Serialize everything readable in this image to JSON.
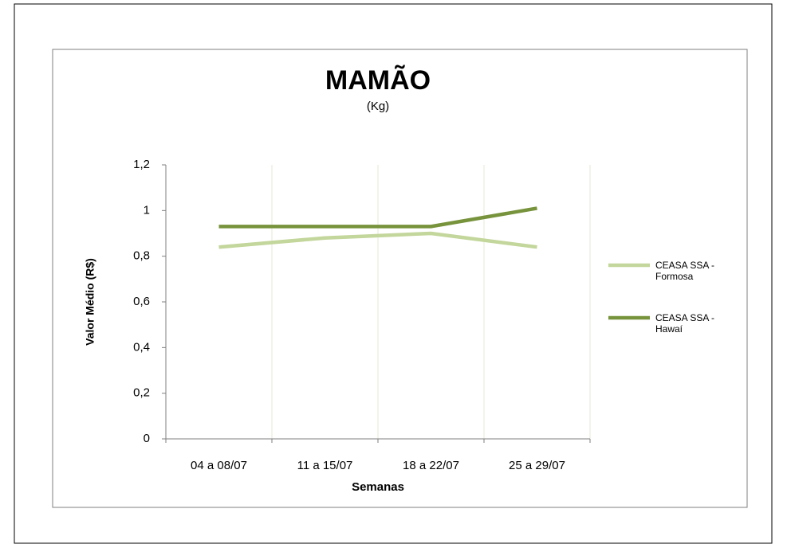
{
  "chart_data": {
    "type": "line",
    "title": "MAMÃO",
    "subtitle": "(Kg)",
    "x_label": "Semanas",
    "y_label": "Valor Médio (R$)",
    "categories": [
      "04 a 08/07",
      "11 a 15/07",
      "18 a 22/07",
      "25 a 29/07"
    ],
    "series": [
      {
        "name": "CEASA SSA - Formosa",
        "color": "#c3d69b",
        "values": [
          0.84,
          0.88,
          0.9,
          0.84
        ]
      },
      {
        "name": "CEASA SSA - Hawaí",
        "color": "#77933c",
        "values": [
          0.93,
          0.93,
          0.93,
          1.01
        ]
      }
    ],
    "ylim": [
      0,
      1.2
    ],
    "yticks": [
      0,
      {
        "value": 0.2,
        "label": "0,2"
      },
      {
        "value": 0.4,
        "label": "0,4"
      },
      {
        "value": 0.6,
        "label": "0,6"
      },
      {
        "value": 0.8,
        "label": "0,8"
      },
      1,
      {
        "value": 1.2,
        "label": "1,2"
      }
    ],
    "grid": "x",
    "legend": "right"
  }
}
